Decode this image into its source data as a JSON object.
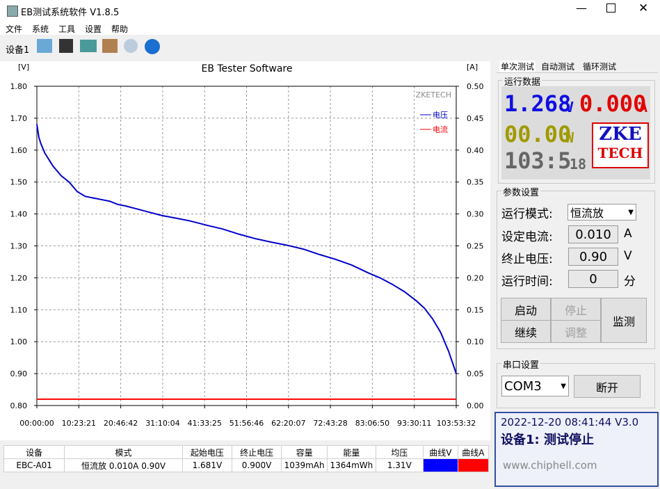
{
  "window": {
    "title": "EB测试系统软件 V1.8.5"
  },
  "menu": [
    "文件",
    "系统",
    "工具",
    "设置",
    "帮助"
  ],
  "toolbar": {
    "device": "设备1"
  },
  "chart_data": {
    "type": "line",
    "title": "EB Tester Software",
    "y_label": "[V]",
    "y2_label": "[A]",
    "watermark": "ZKETECH",
    "grid": true,
    "legend": "upper right",
    "x": [
      0,
      0.5,
      1,
      2,
      3,
      4,
      5,
      6,
      7,
      8,
      10,
      12,
      14,
      16,
      18,
      20,
      22,
      25,
      28,
      31,
      34,
      38,
      42,
      46,
      50,
      54,
      58,
      62,
      66,
      70,
      74,
      78,
      82,
      85,
      88,
      91,
      94,
      96,
      98,
      100,
      102,
      103.892
    ],
    "series": [
      {
        "name": "电压",
        "color": "#0000cc",
        "values": [
          1.681,
          1.64,
          1.62,
          1.59,
          1.57,
          1.55,
          1.535,
          1.52,
          1.51,
          1.5,
          1.47,
          1.455,
          1.45,
          1.445,
          1.44,
          1.43,
          1.425,
          1.415,
          1.405,
          1.395,
          1.388,
          1.378,
          1.365,
          1.353,
          1.337,
          1.323,
          1.312,
          1.302,
          1.29,
          1.273,
          1.258,
          1.24,
          1.216,
          1.2,
          1.18,
          1.157,
          1.128,
          1.105,
          1.072,
          1.03,
          0.97,
          0.9
        ]
      },
      {
        "name": "电流",
        "color": "#ff0000",
        "axis": "y2",
        "values": [
          0.01,
          0.01,
          0.01,
          0.01,
          0.01,
          0.01,
          0.01,
          0.01,
          0.01,
          0.01,
          0.01,
          0.01,
          0.01,
          0.01,
          0.01,
          0.01,
          0.01,
          0.01,
          0.01,
          0.01,
          0.01,
          0.01,
          0.01,
          0.01,
          0.01,
          0.01,
          0.01,
          0.01,
          0.01,
          0.01,
          0.01,
          0.01,
          0.01,
          0.01,
          0.01,
          0.01,
          0.01,
          0.01,
          0.01,
          0.01,
          0.01,
          0.01
        ]
      }
    ],
    "xlim": [
      0,
      103.892
    ],
    "xticks": [
      {
        "value": 0,
        "label": "00:00:00"
      },
      {
        "value": 10.389,
        "label": "10:23:21"
      },
      {
        "value": 20.778,
        "label": "20:46:42"
      },
      {
        "value": 31.168,
        "label": "31:10:04"
      },
      {
        "value": 41.557,
        "label": "41:33:25"
      },
      {
        "value": 51.946,
        "label": "51:56:46"
      },
      {
        "value": 62.335,
        "label": "62:20:07"
      },
      {
        "value": 72.724,
        "label": "72:43:28"
      },
      {
        "value": 83.114,
        "label": "83:06:50"
      },
      {
        "value": 93.503,
        "label": "93:30:11"
      },
      {
        "value": 103.892,
        "label": "103:53:32"
      }
    ],
    "ylim": [
      0.8,
      1.8
    ],
    "yticks": [
      {
        "value": 0.8,
        "label": "0.80"
      },
      {
        "value": 0.9,
        "label": "0.90"
      },
      {
        "value": 1,
        "label": "1.00"
      },
      {
        "value": 1.1,
        "label": "1.10"
      },
      {
        "value": 1.2,
        "label": "1.20"
      },
      {
        "value": 1.3,
        "label": "1.30"
      },
      {
        "value": 1.4,
        "label": "1.40"
      },
      {
        "value": 1.5,
        "label": "1.50"
      },
      {
        "value": 1.6,
        "label": "1.60"
      },
      {
        "value": 1.7,
        "label": "1.70"
      },
      {
        "value": 1.8,
        "label": "1.80"
      }
    ],
    "y2lim": [
      0,
      0.5
    ],
    "y2ticks": [
      {
        "value": 0,
        "label": "0.00"
      },
      {
        "value": 0.05,
        "label": "0.05"
      },
      {
        "value": 0.1,
        "label": "0.10"
      },
      {
        "value": 0.15,
        "label": "0.15"
      },
      {
        "value": 0.2,
        "label": "0.20"
      },
      {
        "value": 0.25,
        "label": "0.25"
      },
      {
        "value": 0.3,
        "label": "0.30"
      },
      {
        "value": 0.35,
        "label": "0.35"
      },
      {
        "value": 0.4,
        "label": "0.40"
      },
      {
        "value": 0.45,
        "label": "0.45"
      },
      {
        "value": 0.5,
        "label": "0.50"
      }
    ]
  },
  "panel": {
    "tabs": [
      "单次测试",
      "自动测试",
      "循环测试"
    ],
    "run_data": {
      "title": "运行数据",
      "voltage": "1.268",
      "voltage_unit": "V",
      "current": "0.000",
      "current_unit": "A",
      "power": "00.00",
      "power_unit": "W",
      "time": "103:5",
      "time_small": "18",
      "logo_top": "ZKE",
      "logo_bottom": "TECH"
    },
    "params": {
      "title": "参数设置",
      "rows": [
        {
          "label": "运行模式:",
          "value": "恒流放"
        },
        {
          "label": "设定电流:",
          "value": "0.010",
          "unit": "A"
        },
        {
          "label": "终止电压:",
          "value": "0.90",
          "unit": "V"
        },
        {
          "label": "运行时间:",
          "value": "0",
          "unit": "分"
        }
      ]
    },
    "buttons": [
      "启动",
      "停止",
      "继续",
      "调整",
      "监测"
    ],
    "serial": {
      "title": "串口设置",
      "port": "COM3",
      "button": "断开"
    },
    "status": {
      "line1": "2022-12-20 08:41:44 V3.0",
      "line2": "设备1: 测试停止",
      "watermark": "www.chiphell.com"
    }
  },
  "table": {
    "headers": [
      "设备",
      "模式",
      "起始电压",
      "终止电压",
      "容量",
      "能量",
      "均压",
      "曲线V",
      "曲线A"
    ],
    "rows": [
      [
        "EBC-A01",
        "恒流放 0.010A 0.90V",
        "1.681V",
        "0.900V",
        "1039mAh",
        "1364mWh",
        "1.31V"
      ]
    ],
    "curve_colors": [
      "#0000ff",
      "#ff0000"
    ]
  }
}
